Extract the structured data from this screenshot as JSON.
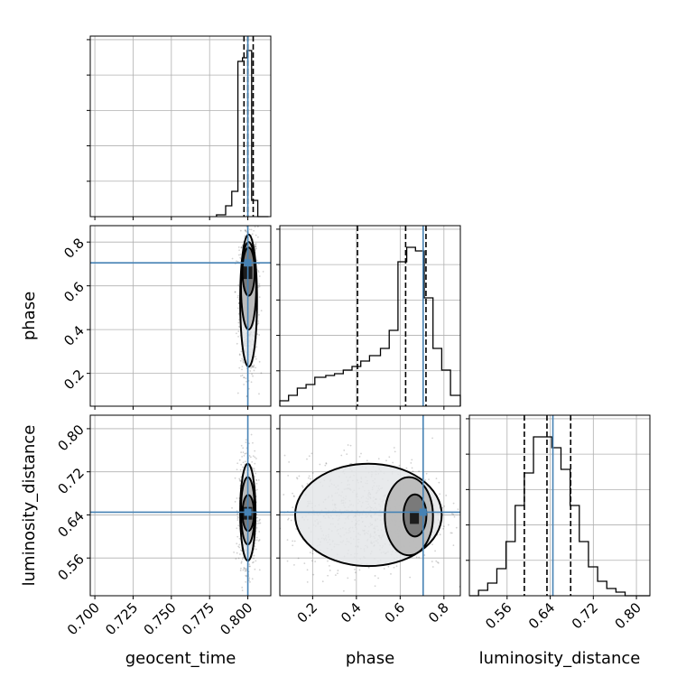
{
  "chart_data": {
    "type": "corner",
    "parameters": [
      "geocent_time",
      "phase",
      "luminosity_distance"
    ],
    "truths": {
      "geocent_time": 0.8,
      "phase": 0.705,
      "luminosity_distance": 0.645
    },
    "ranges": {
      "geocent_time": [
        0.697,
        0.815
      ],
      "phase": [
        0.05,
        0.875
      ],
      "luminosity_distance": [
        0.49,
        0.825
      ]
    },
    "ticks": {
      "geocent_time": [
        "0.700",
        "0.725",
        "0.750",
        "0.775",
        "0.800"
      ],
      "phase": [
        "0.2",
        "0.4",
        "0.6",
        "0.8"
      ],
      "luminosity_distance": [
        "0.56",
        "0.64",
        "0.72",
        "0.80"
      ]
    },
    "quantiles": {
      "geocent_time": [
        0.7975,
        0.8,
        0.8035
      ],
      "phase": [
        0.405,
        0.625,
        0.718
      ],
      "luminosity_distance": [
        0.592,
        0.634,
        0.678
      ]
    },
    "histograms": {
      "geocent_time": {
        "edges": [
          0.7795,
          0.7855,
          0.7895,
          0.7935,
          0.7965,
          0.7995,
          0.8025,
          0.8065,
          0.8105,
          0.8135
        ],
        "heights": [
          0.01,
          0.06,
          0.14,
          0.86,
          0.88,
          0.92,
          0.09,
          0.0,
          0.0
        ]
      },
      "phase": {
        "edges": [
          0.05,
          0.09,
          0.13,
          0.17,
          0.21,
          0.26,
          0.3,
          0.34,
          0.38,
          0.42,
          0.46,
          0.51,
          0.55,
          0.59,
          0.63,
          0.67,
          0.71,
          0.75,
          0.79,
          0.83,
          0.875
        ],
        "heights": [
          0.03,
          0.06,
          0.1,
          0.12,
          0.16,
          0.17,
          0.18,
          0.2,
          0.22,
          0.25,
          0.28,
          0.32,
          0.42,
          0.8,
          0.88,
          0.86,
          0.6,
          0.32,
          0.2,
          0.06
        ]
      },
      "luminosity_distance": {
        "edges": [
          0.49,
          0.507,
          0.524,
          0.541,
          0.558,
          0.575,
          0.592,
          0.609,
          0.626,
          0.643,
          0.66,
          0.677,
          0.694,
          0.711,
          0.728,
          0.745,
          0.762,
          0.779,
          0.796,
          0.825
        ],
        "heights": [
          0.0,
          0.03,
          0.07,
          0.15,
          0.3,
          0.5,
          0.68,
          0.88,
          0.88,
          0.82,
          0.7,
          0.5,
          0.3,
          0.16,
          0.08,
          0.04,
          0.02,
          0.0,
          0.0
        ]
      }
    },
    "contours_2d": {
      "phase_vs_geocent_time": {
        "center": [
          0.8,
          0.66
        ],
        "levels": [
          {
            "x": [
              0.7965,
              0.8045
            ],
            "y": [
              0.555,
              0.775
            ]
          },
          {
            "x": [
              0.7955,
              0.8055
            ],
            "y": [
              0.4,
              0.8
            ]
          },
          {
            "x": [
              0.795,
              0.806
            ],
            "y": [
              0.23,
              0.835
            ]
          }
        ]
      },
      "luminosity_distance_vs_geocent_time": {
        "center": [
          0.8,
          0.643
        ],
        "levels": [
          {
            "x": [
              0.7965,
              0.804
            ],
            "y": [
              0.61,
              0.677
            ]
          },
          {
            "x": [
              0.7955,
              0.8045
            ],
            "y": [
              0.585,
              0.71
            ]
          },
          {
            "x": [
              0.795,
              0.805
            ],
            "y": [
              0.555,
              0.735
            ]
          }
        ]
      },
      "luminosity_distance_vs_phase": {
        "center": [
          0.665,
          0.635
        ],
        "levels": [
          {
            "x": [
              0.615,
              0.72
            ],
            "y": [
              0.6,
              0.678
            ]
          },
          {
            "x": [
              0.53,
              0.75
            ],
            "y": [
              0.565,
              0.71
            ]
          },
          {
            "x": [
              0.12,
              0.79
            ],
            "y": [
              0.545,
              0.735
            ]
          }
        ]
      }
    },
    "grid": true
  }
}
